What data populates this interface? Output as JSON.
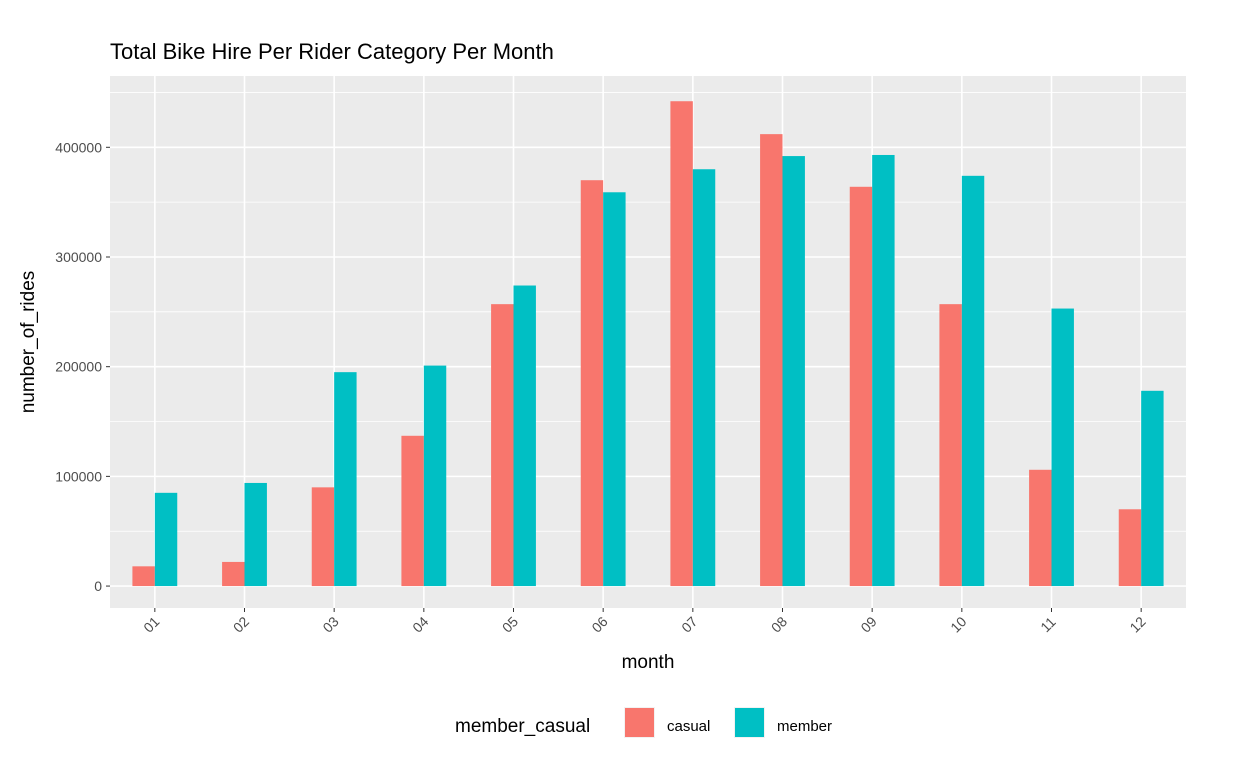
{
  "chart_data": {
    "type": "bar",
    "title": "Total Bike Hire Per Rider Category Per Month",
    "xlabel": "month",
    "ylabel": "number_of_rides",
    "categories": [
      "01",
      "02",
      "03",
      "04",
      "05",
      "06",
      "07",
      "08",
      "09",
      "10",
      "11",
      "12"
    ],
    "series": [
      {
        "name": "casual",
        "color": "#F8766D",
        "values": [
          18000,
          22000,
          90000,
          137000,
          257000,
          370000,
          442000,
          412000,
          364000,
          257000,
          106000,
          70000
        ]
      },
      {
        "name": "member",
        "color": "#00BFC4",
        "values": [
          85000,
          94000,
          195000,
          201000,
          274000,
          359000,
          380000,
          392000,
          393000,
          374000,
          253000,
          178000
        ]
      }
    ],
    "ylim": [
      -20000,
      465000
    ],
    "yticks": [
      0,
      100000,
      200000,
      300000,
      400000
    ],
    "ytick_labels": [
      "0",
      "100000",
      "200000",
      "300000",
      "400000"
    ],
    "grid": true,
    "legend": {
      "title": "member_casual",
      "position": "bottom"
    },
    "panel_background": "#EBEBEB",
    "grid_color": "#FFFFFF"
  }
}
